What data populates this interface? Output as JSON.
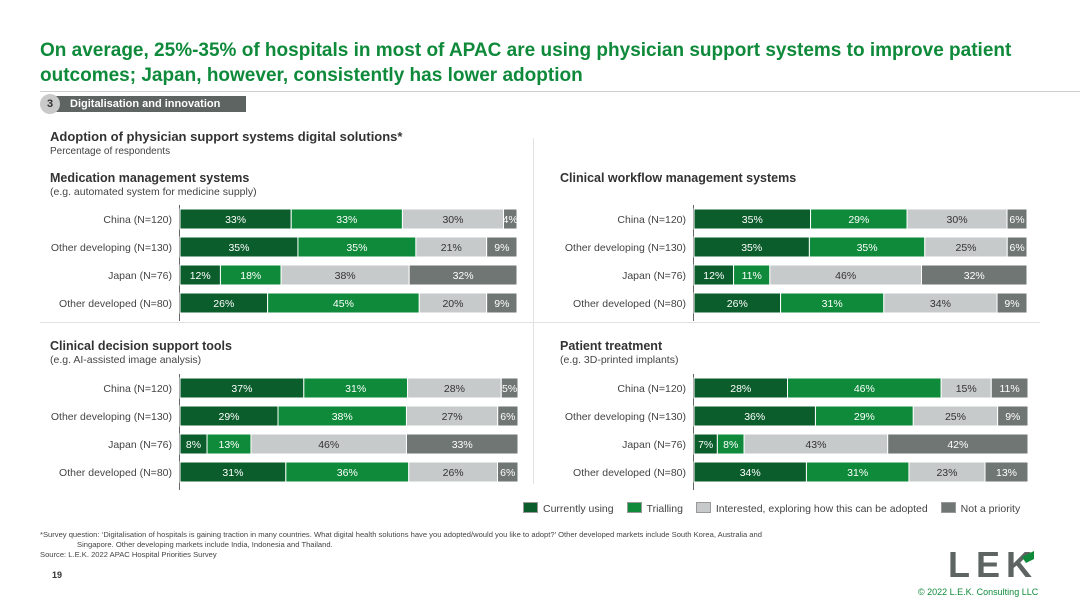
{
  "title": "On average, 25%-35% of hospitals in most of APAC are using physician support systems to improve patient outcomes; Japan, however, consistently has lower adoption",
  "section": {
    "number": "3",
    "label": "Digitalisation and innovation"
  },
  "heading": "Adoption of physician support systems digital solutions*",
  "subheading": "Percentage of respondents",
  "colors": {
    "currently": "#0b5d2c",
    "trialling": "#0e8a3a",
    "interested": "#c6cacb",
    "not_priority": "#6f7674"
  },
  "legend": [
    {
      "key": "currently",
      "label": "Currently using"
    },
    {
      "key": "trialling",
      "label": "Trialling"
    },
    {
      "key": "interested",
      "label": "Interested, exploring how this can be adopted"
    },
    {
      "key": "not_priority",
      "label": "Not a priority"
    }
  ],
  "chart_data": [
    {
      "type": "bar",
      "stacked": true,
      "orientation": "horizontal",
      "title": "Medication management systems",
      "subtitle": "(e.g. automated system for medicine supply)",
      "categories": [
        "China (N=120)",
        "Other developing (N=130)",
        "Japan (N=76)",
        "Other developed (N=80)"
      ],
      "series": [
        {
          "name": "Currently using",
          "values": [
            33,
            35,
            12,
            26
          ]
        },
        {
          "name": "Trialling",
          "values": [
            33,
            35,
            18,
            45
          ]
        },
        {
          "name": "Interested, exploring how this can be adopted",
          "values": [
            30,
            21,
            38,
            20
          ]
        },
        {
          "name": "Not a priority",
          "values": [
            4,
            9,
            32,
            9
          ]
        }
      ]
    },
    {
      "type": "bar",
      "stacked": true,
      "orientation": "horizontal",
      "title": "Clinical workflow management systems",
      "subtitle": "",
      "categories": [
        "China (N=120)",
        "Other developing (N=130)",
        "Japan (N=76)",
        "Other developed (N=80)"
      ],
      "series": [
        {
          "name": "Currently using",
          "values": [
            35,
            35,
            12,
            26
          ]
        },
        {
          "name": "Trialling",
          "values": [
            29,
            35,
            11,
            31
          ]
        },
        {
          "name": "Interested, exploring how this can be adopted",
          "values": [
            30,
            25,
            46,
            34
          ]
        },
        {
          "name": "Not a priority",
          "values": [
            6,
            6,
            32,
            9
          ]
        }
      ]
    },
    {
      "type": "bar",
      "stacked": true,
      "orientation": "horizontal",
      "title": "Clinical decision support tools",
      "subtitle": "(e.g. AI-assisted image analysis)",
      "categories": [
        "China (N=120)",
        "Other developing (N=130)",
        "Japan (N=76)",
        "Other developed (N=80)"
      ],
      "series": [
        {
          "name": "Currently using",
          "values": [
            37,
            29,
            8,
            31
          ]
        },
        {
          "name": "Trialling",
          "values": [
            31,
            38,
            13,
            36
          ]
        },
        {
          "name": "Interested, exploring how this can be adopted",
          "values": [
            28,
            27,
            46,
            26
          ]
        },
        {
          "name": "Not a priority",
          "values": [
            5,
            6,
            33,
            6
          ]
        }
      ]
    },
    {
      "type": "bar",
      "stacked": true,
      "orientation": "horizontal",
      "title": "Patient treatment",
      "subtitle": "(e.g. 3D-printed implants)",
      "categories": [
        "China (N=120)",
        "Other developing (N=130)",
        "Japan (N=76)",
        "Other developed (N=80)"
      ],
      "series": [
        {
          "name": "Currently using",
          "values": [
            28,
            36,
            7,
            34
          ]
        },
        {
          "name": "Trialling",
          "values": [
            46,
            29,
            8,
            31
          ]
        },
        {
          "name": "Interested, exploring how this can be adopted",
          "values": [
            15,
            25,
            43,
            23
          ]
        },
        {
          "name": "Not a priority",
          "values": [
            11,
            9,
            42,
            13
          ]
        }
      ]
    }
  ],
  "footnote_1": "*Survey question: ‘Digitalisation of hospitals is gaining traction in many countries. What digital health solutions have you adopted/would you like to adopt?’ Other developed markets include South Korea, Australia and",
  "footnote_2": "Singapore. Other developing markets include India, Indonesia and Thailand.",
  "source": "Source:  L.E.K. 2022 APAC Hospital Priorities Survey",
  "page_number": "19",
  "logo_text": "LEK",
  "copyright": "© 2022 L.E.K. Consulting LLC"
}
